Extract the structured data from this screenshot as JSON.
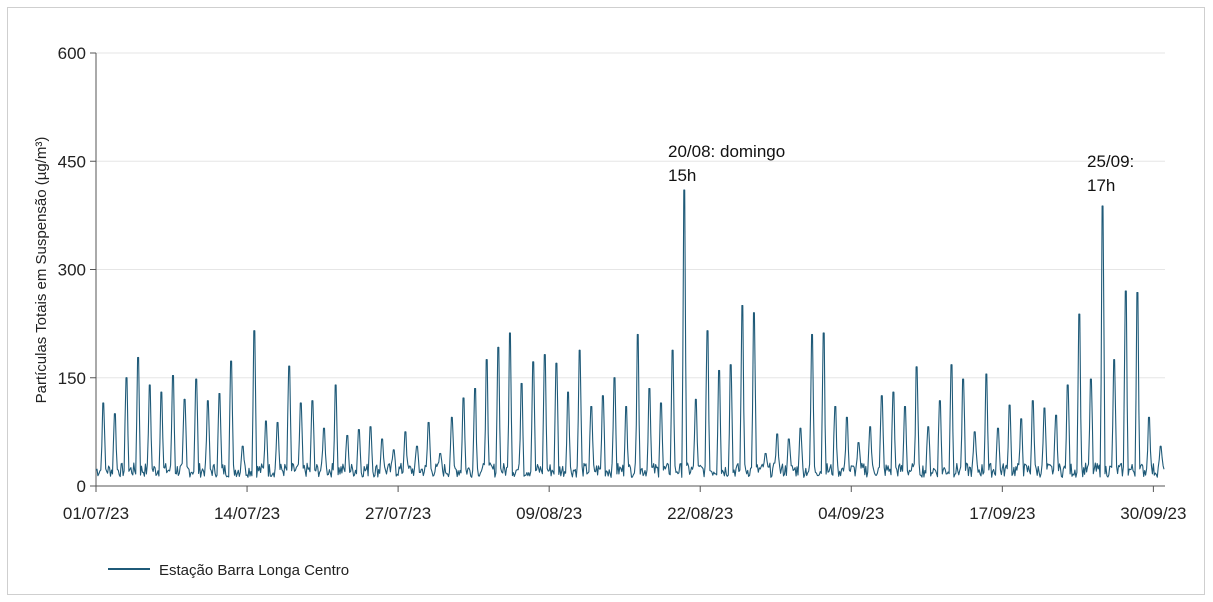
{
  "chart_data": {
    "type": "line",
    "title": "",
    "xlabel": "",
    "ylabel": "Partículas Totais em Suspensão (µg/m³)",
    "ylim": [
      0,
      600
    ],
    "yticks": [
      0,
      150,
      300,
      450,
      600
    ],
    "xlim": [
      "2023-07-01",
      "2023-10-01"
    ],
    "xticks": [
      "01/07/23",
      "14/07/23",
      "27/07/23",
      "09/08/23",
      "22/08/23",
      "04/09/23",
      "17/09/23",
      "30/09/23"
    ],
    "xtick_dates": [
      "2023-07-01",
      "2023-07-14",
      "2023-07-27",
      "2023-08-09",
      "2023-08-22",
      "2023-09-04",
      "2023-09-17",
      "2023-09-30"
    ],
    "grid": "horizontal",
    "legend_position": "bottom-left",
    "series": [
      {
        "name": "Estação Barra Longa Centro",
        "color": "#1f5a78",
        "x": [
          "2023-07-01",
          "2023-07-02",
          "2023-07-03",
          "2023-07-04",
          "2023-07-05",
          "2023-07-06",
          "2023-07-07",
          "2023-07-08",
          "2023-07-09",
          "2023-07-10",
          "2023-07-11",
          "2023-07-12",
          "2023-07-13",
          "2023-07-14",
          "2023-07-15",
          "2023-07-16",
          "2023-07-17",
          "2023-07-18",
          "2023-07-19",
          "2023-07-20",
          "2023-07-21",
          "2023-07-22",
          "2023-07-23",
          "2023-07-24",
          "2023-07-25",
          "2023-07-26",
          "2023-07-27",
          "2023-07-28",
          "2023-07-29",
          "2023-07-30",
          "2023-07-31",
          "2023-08-01",
          "2023-08-02",
          "2023-08-03",
          "2023-08-04",
          "2023-08-05",
          "2023-08-06",
          "2023-08-07",
          "2023-08-08",
          "2023-08-09",
          "2023-08-10",
          "2023-08-11",
          "2023-08-12",
          "2023-08-13",
          "2023-08-14",
          "2023-08-15",
          "2023-08-16",
          "2023-08-17",
          "2023-08-18",
          "2023-08-19",
          "2023-08-20",
          "2023-08-21",
          "2023-08-22",
          "2023-08-23",
          "2023-08-24",
          "2023-08-25",
          "2023-08-26",
          "2023-08-27",
          "2023-08-28",
          "2023-08-29",
          "2023-08-30",
          "2023-08-31",
          "2023-09-01",
          "2023-09-02",
          "2023-09-03",
          "2023-09-04",
          "2023-09-05",
          "2023-09-06",
          "2023-09-07",
          "2023-09-08",
          "2023-09-09",
          "2023-09-10",
          "2023-09-11",
          "2023-09-12",
          "2023-09-13",
          "2023-09-14",
          "2023-09-15",
          "2023-09-16",
          "2023-09-17",
          "2023-09-18",
          "2023-09-19",
          "2023-09-20",
          "2023-09-21",
          "2023-09-22",
          "2023-09-23",
          "2023-09-24",
          "2023-09-25",
          "2023-09-26",
          "2023-09-27",
          "2023-09-28",
          "2023-09-29",
          "2023-09-30"
        ],
        "values": [
          115,
          100,
          150,
          178,
          140,
          130,
          153,
          120,
          148,
          118,
          128,
          173,
          55,
          215,
          90,
          88,
          166,
          115,
          118,
          80,
          140,
          70,
          78,
          82,
          65,
          50,
          75,
          55,
          88,
          45,
          95,
          122,
          135,
          175,
          192,
          212,
          142,
          172,
          182,
          170,
          130,
          188,
          110,
          125,
          150,
          110,
          210,
          135,
          115,
          188,
          410,
          120,
          215,
          160,
          168,
          250,
          240,
          45,
          72,
          65,
          80,
          210,
          212,
          110,
          95,
          60,
          82,
          125,
          130,
          110,
          165,
          82,
          118,
          168,
          148,
          75,
          155,
          80,
          112,
          93,
          118,
          108,
          98,
          140,
          238,
          148,
          388,
          175,
          270,
          268,
          95,
          55
        ]
      }
    ],
    "annotations": [
      {
        "text_line1": "20/08: domingo",
        "text_line2": "15h",
        "x": "2023-08-20",
        "y": 410
      },
      {
        "text_line1": "25/09:",
        "text_line2": "17h",
        "x": "2023-09-25",
        "y": 388
      }
    ]
  }
}
